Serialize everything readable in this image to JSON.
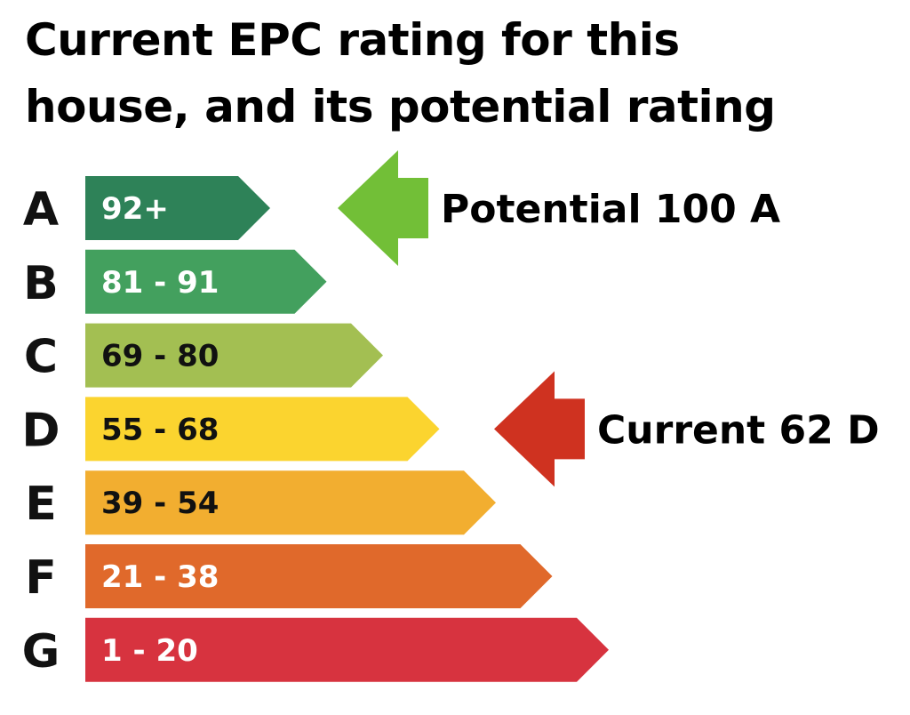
{
  "title_lines": [
    "Current EPC rating for this",
    "house, and its potential rating"
  ],
  "chart_data": {
    "type": "bar",
    "categories": [
      "A",
      "B",
      "C",
      "D",
      "E",
      "F",
      "G"
    ],
    "ranges": [
      "92+",
      "81 - 91",
      "69 - 80",
      "55 - 68",
      "39 - 54",
      "21 - 38",
      "1 - 20"
    ],
    "band_min": [
      92,
      81,
      69,
      55,
      39,
      21,
      1
    ],
    "band_max": [
      100,
      91,
      80,
      68,
      54,
      38,
      20
    ],
    "colors": [
      "#2e8258",
      "#43a05e",
      "#a3bf52",
      "#fbd42f",
      "#f2ae30",
      "#e0692b",
      "#d7333f"
    ],
    "label_colors": [
      "#ffffff",
      "#ffffff",
      "#111111",
      "#111111",
      "#111111",
      "#ffffff",
      "#ffffff"
    ],
    "current": {
      "label": "Current 62 D",
      "value": 62,
      "band": "D",
      "color": "#cf3220"
    },
    "potential": {
      "label": "Potential 100 A",
      "value": 100,
      "band": "A",
      "color": "#72bf37"
    }
  }
}
